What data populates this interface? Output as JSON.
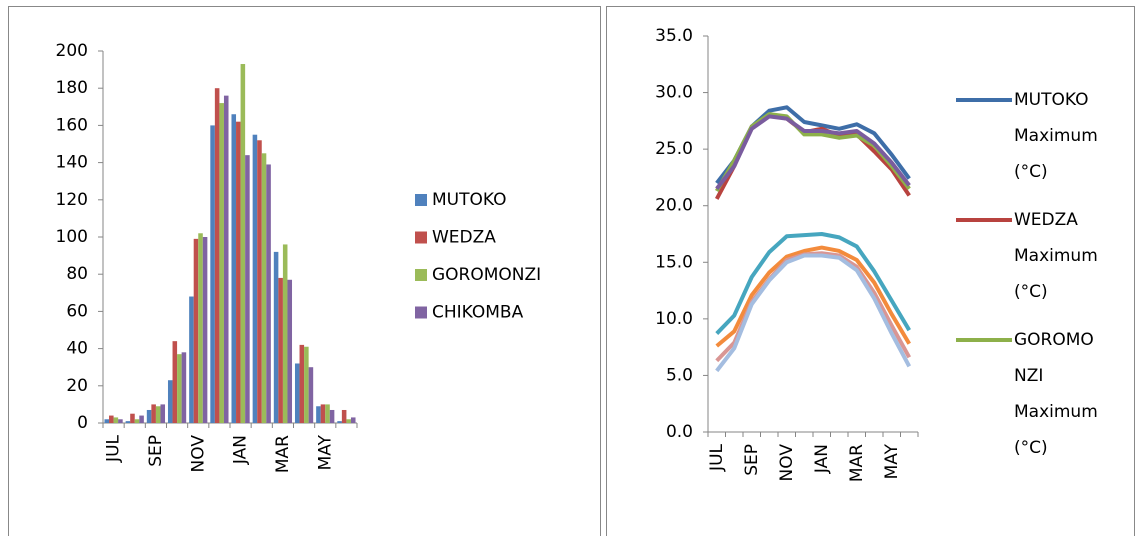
{
  "chart_data": [
    {
      "type": "bar",
      "categories": [
        "JUL",
        null,
        "SEP",
        null,
        "NOV",
        null,
        "JAN",
        null,
        "MAR",
        null,
        "MAY",
        null
      ],
      "series": [
        {
          "name": "MUTOKO",
          "color": "#4f81bd",
          "values": [
            2,
            1,
            7,
            23,
            68,
            160,
            166,
            155,
            92,
            32,
            9,
            1
          ]
        },
        {
          "name": "WEDZA",
          "color": "#c0504d",
          "values": [
            4,
            5,
            10,
            44,
            99,
            180,
            162,
            152,
            78,
            42,
            10,
            7
          ]
        },
        {
          "name": "GOROMONZI",
          "color": "#9bbb59",
          "values": [
            3,
            2,
            9,
            37,
            102,
            172,
            193,
            145,
            96,
            41,
            10,
            2
          ]
        },
        {
          "name": "CHIKOMBA",
          "color": "#8064a2",
          "values": [
            2,
            4,
            10,
            38,
            100,
            176,
            144,
            139,
            77,
            30,
            7,
            3
          ]
        }
      ],
      "ylim": [
        0,
        200
      ],
      "yticks": [
        0,
        20,
        40,
        60,
        80,
        100,
        120,
        140,
        160,
        180,
        200
      ],
      "grid": false,
      "legend": "right"
    },
    {
      "type": "line",
      "categories": [
        "JUL",
        null,
        "SEP",
        null,
        "NOV",
        null,
        "JAN",
        null,
        "MAR",
        null,
        "MAY",
        null
      ],
      "series": [
        {
          "name": "MUTOKO Maximum (°C)",
          "color": "#3e6ea8",
          "values": [
            22.0,
            24.0,
            27.0,
            28.4,
            28.7,
            27.4,
            27.1,
            26.8,
            27.2,
            26.4,
            24.5,
            22.4
          ]
        },
        {
          "name": "WEDZA Maximum (°C)",
          "color": "#b8433f",
          "values": [
            20.6,
            23.5,
            27.0,
            28.0,
            27.7,
            26.5,
            26.8,
            26.2,
            26.3,
            24.8,
            23.2,
            20.9
          ]
        },
        {
          "name": "GOROMONZI Maximum (°C)",
          "color": "#8db04a",
          "values": [
            21.3,
            24.0,
            27.0,
            28.1,
            27.9,
            26.3,
            26.3,
            26.0,
            26.2,
            25.3,
            23.5,
            21.5
          ]
        },
        {
          "color": "#7a5c9e",
          "values": [
            21.5,
            23.5,
            26.8,
            27.9,
            27.7,
            26.6,
            26.6,
            26.4,
            26.6,
            25.5,
            23.8,
            21.8
          ]
        },
        {
          "color": "#46a6bf",
          "values": [
            8.7,
            10.3,
            13.7,
            15.9,
            17.3,
            17.4,
            17.5,
            17.2,
            16.4,
            14.2,
            11.6,
            9.0
          ]
        },
        {
          "color": "#f38b3c",
          "values": [
            7.6,
            8.9,
            12.1,
            14.1,
            15.5,
            16.0,
            16.3,
            16.0,
            15.2,
            13.2,
            10.4,
            7.8
          ]
        },
        {
          "color": "#d99694",
          "values": [
            6.3,
            7.9,
            11.5,
            13.5,
            15.2,
            15.7,
            15.8,
            15.6,
            14.6,
            12.3,
            9.4,
            6.6
          ]
        },
        {
          "color": "#a4bde0",
          "values": [
            5.4,
            7.4,
            11.3,
            13.4,
            15.0,
            15.6,
            15.6,
            15.4,
            14.3,
            11.8,
            8.7,
            5.8
          ]
        }
      ],
      "ylim": [
        0,
        35
      ],
      "yticks": [
        {
          "value": 0,
          "label": "0.0"
        },
        {
          "value": 5,
          "label": "5.0"
        },
        {
          "value": 10,
          "label": "10.0"
        },
        {
          "value": 15,
          "label": "15.0"
        },
        {
          "value": 20,
          "label": "20.0"
        },
        {
          "value": 25,
          "label": "25.0"
        },
        {
          "value": 30,
          "label": "30.0"
        },
        {
          "value": 35,
          "label": "35.0"
        }
      ],
      "grid": false,
      "legend": "right"
    }
  ]
}
